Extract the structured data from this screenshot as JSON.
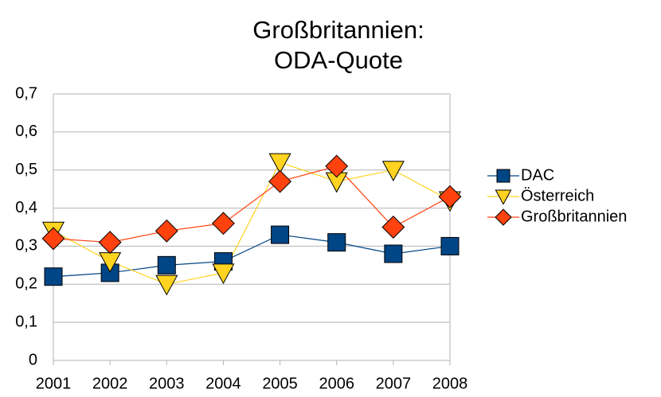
{
  "chart_data": {
    "type": "line",
    "title": [
      "Großbritannien:",
      "ODA-Quote"
    ],
    "categories": [
      "2001",
      "2002",
      "2003",
      "2004",
      "2005",
      "2006",
      "2007",
      "2008"
    ],
    "series": [
      {
        "name": "DAC",
        "color": "#004586",
        "marker": "square",
        "values": [
          0.22,
          0.23,
          0.25,
          0.26,
          0.33,
          0.31,
          0.28,
          0.3
        ]
      },
      {
        "name": "Österreich",
        "color": "#ffd320",
        "marker": "triangle-down",
        "values": [
          0.34,
          0.26,
          0.2,
          0.23,
          0.52,
          0.47,
          0.5,
          0.42
        ]
      },
      {
        "name": "Großbritannien",
        "color": "#ff420e",
        "marker": "diamond",
        "values": [
          0.32,
          0.31,
          0.34,
          0.36,
          0.47,
          0.51,
          0.35,
          0.43
        ]
      }
    ],
    "ylim": [
      0,
      0.7
    ],
    "yticks": [
      0,
      {
        "value": 0.1,
        "label": "0,1"
      },
      {
        "value": 0.2,
        "label": "0,2"
      },
      {
        "value": 0.3,
        "label": "0,3"
      },
      {
        "value": 0.4,
        "label": "0,4"
      },
      {
        "value": 0.5,
        "label": "0,5"
      },
      {
        "value": 0.6,
        "label": "0,6"
      },
      {
        "value": 0.7,
        "label": "0,7"
      }
    ],
    "grid": true,
    "legend": "right"
  }
}
